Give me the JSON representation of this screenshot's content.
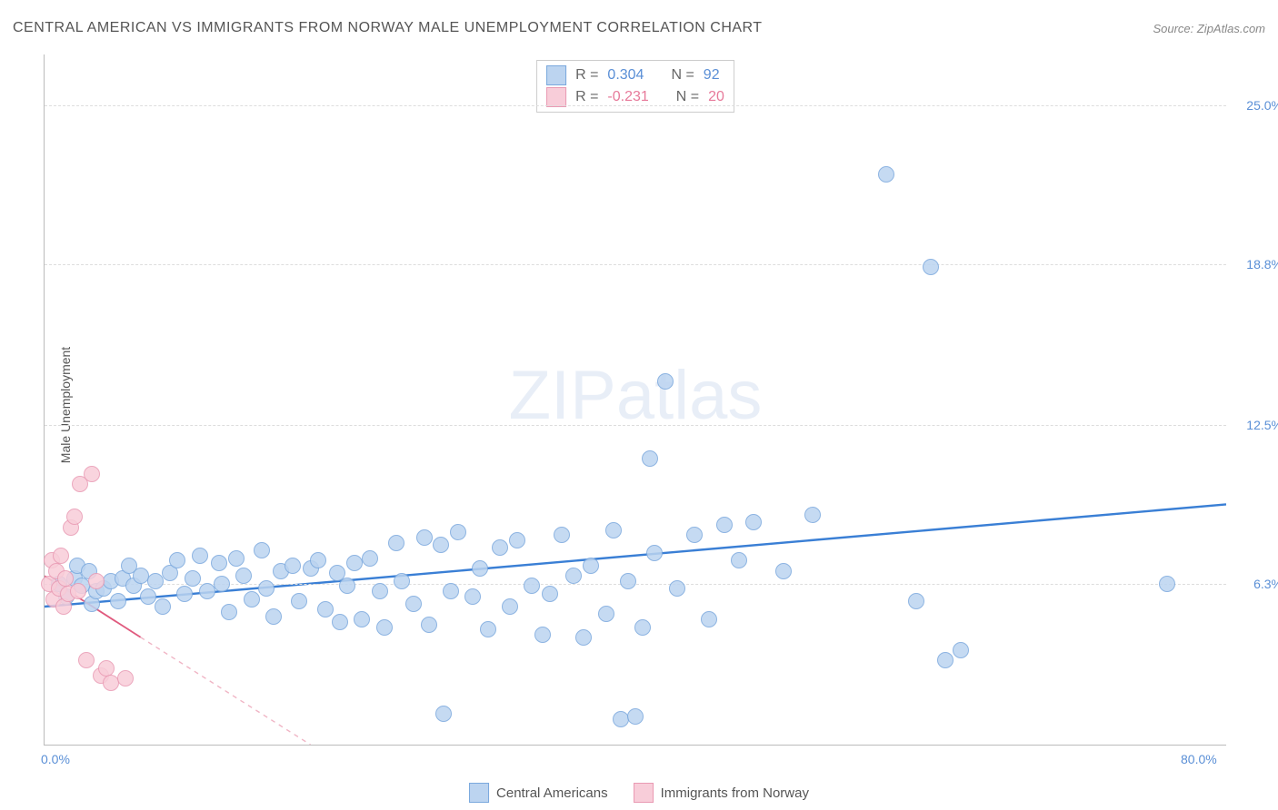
{
  "header": {
    "title": "CENTRAL AMERICAN VS IMMIGRANTS FROM NORWAY MALE UNEMPLOYMENT CORRELATION CHART",
    "source_label": "Source: ZipAtlas.com"
  },
  "ylabel": "Male Unemployment",
  "watermark": {
    "a": "ZIP",
    "b": "atlas"
  },
  "axes": {
    "xlim": [
      0,
      80
    ],
    "ylim": [
      0,
      27
    ],
    "xticks": [
      {
        "v": 0,
        "label": "0.0%"
      },
      {
        "v": 80,
        "label": "80.0%"
      }
    ],
    "yticks": [
      {
        "v": 6.3,
        "label": "6.3%"
      },
      {
        "v": 12.5,
        "label": "12.5%"
      },
      {
        "v": 18.8,
        "label": "18.8%"
      },
      {
        "v": 25.0,
        "label": "25.0%"
      }
    ],
    "ytick_color": "#5a8fd6",
    "xtick_color": "#5a8fd6",
    "grid_color": "#dddddd",
    "axis_color": "#bbbbbb"
  },
  "stats": [
    {
      "swatch_fill": "#bcd4f0",
      "swatch_border": "#7aa8dd",
      "r": "0.304",
      "n": "92",
      "val_color": "#5a8fd6"
    },
    {
      "swatch_fill": "#f8cdd9",
      "swatch_border": "#e99ab3",
      "r": "-0.231",
      "n": "20",
      "val_color": "#e77a9a"
    }
  ],
  "bottom_legend": [
    {
      "swatch_fill": "#bcd4f0",
      "swatch_border": "#7aa8dd",
      "label": "Central Americans"
    },
    {
      "swatch_fill": "#f8cdd9",
      "swatch_border": "#e99ab3",
      "label": "Immigrants from Norway"
    }
  ],
  "series": [
    {
      "name": "central-americans",
      "marker_fill": "#bcd4f0",
      "marker_border": "#7aa8dd",
      "marker_opacity": 0.85,
      "marker_size": 16,
      "trend": {
        "x1": 0,
        "y1": 5.4,
        "x2": 80,
        "y2": 9.4,
        "color": "#3a7fd5",
        "width": 2.4,
        "dash": "none"
      },
      "points": [
        [
          1,
          6.3
        ],
        [
          1.5,
          5.8
        ],
        [
          2,
          6.5
        ],
        [
          2.2,
          7.0
        ],
        [
          2.5,
          6.2
        ],
        [
          3,
          6.8
        ],
        [
          3.2,
          5.5
        ],
        [
          3.5,
          6.0
        ],
        [
          4,
          6.1
        ],
        [
          4.5,
          6.4
        ],
        [
          5,
          5.6
        ],
        [
          5.3,
          6.5
        ],
        [
          5.7,
          7.0
        ],
        [
          6,
          6.2
        ],
        [
          6.5,
          6.6
        ],
        [
          7,
          5.8
        ],
        [
          7.5,
          6.4
        ],
        [
          8,
          5.4
        ],
        [
          8.5,
          6.7
        ],
        [
          9,
          7.2
        ],
        [
          9.5,
          5.9
        ],
        [
          10,
          6.5
        ],
        [
          10.5,
          7.4
        ],
        [
          11,
          6.0
        ],
        [
          11.8,
          7.1
        ],
        [
          12,
          6.3
        ],
        [
          12.5,
          5.2
        ],
        [
          13,
          7.3
        ],
        [
          13.5,
          6.6
        ],
        [
          14,
          5.7
        ],
        [
          14.7,
          7.6
        ],
        [
          15,
          6.1
        ],
        [
          15.5,
          5.0
        ],
        [
          16,
          6.8
        ],
        [
          16.8,
          7.0
        ],
        [
          17.2,
          5.6
        ],
        [
          18,
          6.9
        ],
        [
          18.5,
          7.2
        ],
        [
          19,
          5.3
        ],
        [
          19.8,
          6.7
        ],
        [
          20,
          4.8
        ],
        [
          20.5,
          6.2
        ],
        [
          21,
          7.1
        ],
        [
          21.5,
          4.9
        ],
        [
          22,
          7.3
        ],
        [
          22.7,
          6.0
        ],
        [
          23,
          4.6
        ],
        [
          23.8,
          7.9
        ],
        [
          24.2,
          6.4
        ],
        [
          25,
          5.5
        ],
        [
          25.7,
          8.1
        ],
        [
          26,
          4.7
        ],
        [
          26.8,
          7.8
        ],
        [
          27,
          1.2
        ],
        [
          27.5,
          6.0
        ],
        [
          28,
          8.3
        ],
        [
          29,
          5.8
        ],
        [
          29.5,
          6.9
        ],
        [
          30,
          4.5
        ],
        [
          30.8,
          7.7
        ],
        [
          31.5,
          5.4
        ],
        [
          32,
          8.0
        ],
        [
          33,
          6.2
        ],
        [
          33.7,
          4.3
        ],
        [
          34.2,
          5.9
        ],
        [
          35,
          8.2
        ],
        [
          35.8,
          6.6
        ],
        [
          36.5,
          4.2
        ],
        [
          37,
          7.0
        ],
        [
          38,
          5.1
        ],
        [
          38.5,
          8.4
        ],
        [
          39,
          1.0
        ],
        [
          39.5,
          6.4
        ],
        [
          40,
          1.1
        ],
        [
          40.5,
          4.6
        ],
        [
          41,
          11.2
        ],
        [
          41.3,
          7.5
        ],
        [
          42,
          14.2
        ],
        [
          42.8,
          6.1
        ],
        [
          44,
          8.2
        ],
        [
          45,
          4.9
        ],
        [
          46,
          8.6
        ],
        [
          47,
          7.2
        ],
        [
          48,
          8.7
        ],
        [
          50,
          6.8
        ],
        [
          52,
          9.0
        ],
        [
          57,
          22.3
        ],
        [
          59,
          5.6
        ],
        [
          60,
          18.7
        ],
        [
          61,
          3.3
        ],
        [
          62,
          3.7
        ],
        [
          76,
          6.3
        ]
      ]
    },
    {
      "name": "immigrants-norway",
      "marker_fill": "#f8cdd9",
      "marker_border": "#e99ab3",
      "marker_opacity": 0.85,
      "marker_size": 16,
      "trend": {
        "x1": 0,
        "y1": 6.6,
        "x2": 6.5,
        "y2": 4.2,
        "color": "#e05a7e",
        "width": 1.8,
        "dash": "none"
      },
      "trend_ext": {
        "x1": 6.5,
        "y1": 4.2,
        "x2": 18,
        "y2": 0,
        "color": "#f0b5c5",
        "width": 1.4,
        "dash": "5,5"
      },
      "points": [
        [
          0.3,
          6.3
        ],
        [
          0.5,
          7.2
        ],
        [
          0.6,
          5.7
        ],
        [
          0.8,
          6.8
        ],
        [
          1.0,
          6.1
        ],
        [
          1.1,
          7.4
        ],
        [
          1.3,
          5.4
        ],
        [
          1.4,
          6.5
        ],
        [
          1.6,
          5.9
        ],
        [
          1.8,
          8.5
        ],
        [
          2.0,
          8.9
        ],
        [
          2.3,
          6.0
        ],
        [
          2.4,
          10.2
        ],
        [
          2.8,
          3.3
        ],
        [
          3.2,
          10.6
        ],
        [
          3.5,
          6.4
        ],
        [
          3.8,
          2.7
        ],
        [
          4.2,
          3.0
        ],
        [
          4.5,
          2.4
        ],
        [
          5.5,
          2.6
        ]
      ]
    }
  ]
}
